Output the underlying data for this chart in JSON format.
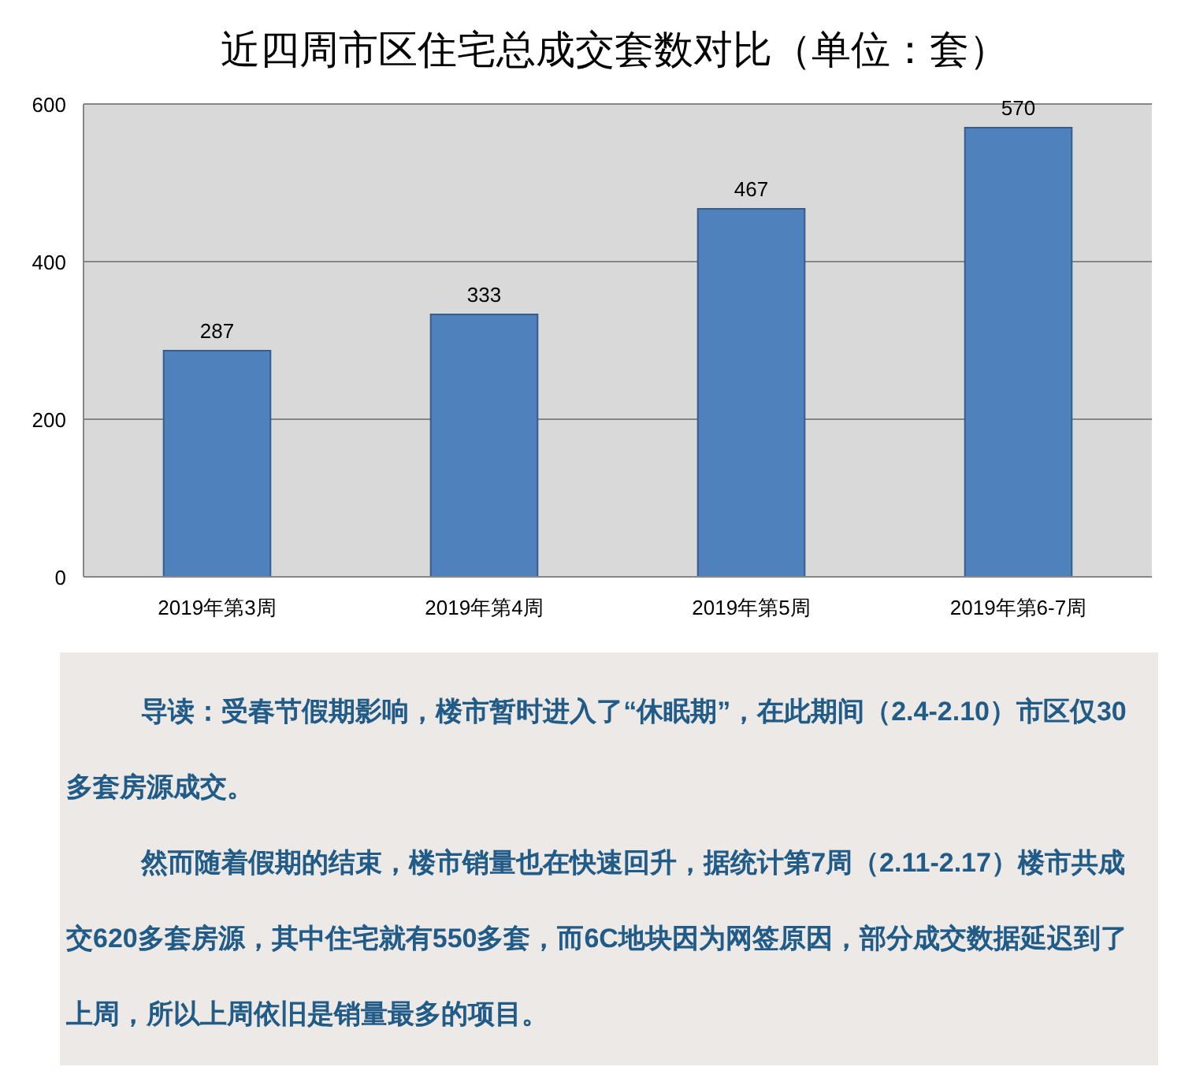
{
  "chart_data": {
    "type": "bar",
    "title": "近四周市区住宅总成交套数对比（单位：套）",
    "categories": [
      "2019年第3周",
      "2019年第4周",
      "2019年第5周",
      "2019年第6-7周"
    ],
    "values": [
      287,
      333,
      467,
      570
    ],
    "color": "#4f81bd",
    "ylim": [
      0,
      600
    ],
    "yticks": [
      0,
      200,
      400,
      600
    ],
    "grid": "y",
    "data_labels": true,
    "annotations": [
      "导读：受春节假期影响，楼市暂时进入了“休眠期”，在此期间（2.4-2.10）市区仅30多套房源成交。",
      "然而随着假期的结束，楼市销量也在快速回升，据统计第7周（2.11-2.17）楼市共成交620多套房源，其中住宅就有550多套，而6C地块因为网签原因，部分成交数据延迟到了上周，所以上周依旧是销量最多的项目。"
    ]
  }
}
